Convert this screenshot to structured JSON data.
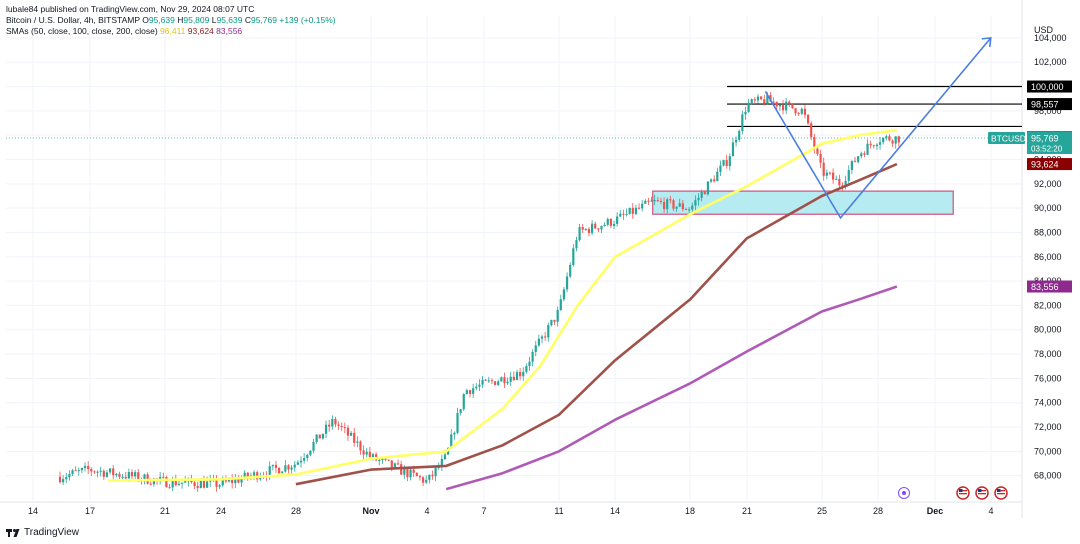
{
  "header": {
    "published": "lubale84 published on TradingView.com, Nov 29, 2024 08:07 UTC",
    "symbol_line": "Bitcoin / U.S. Dollar, 4h, BITSTAMP",
    "o_label": "O",
    "o_value": "95,639",
    "h_label": "H",
    "h_value": "95,809",
    "l_label": "L",
    "l_value": "95,639",
    "c_label": "C",
    "c_value": "95,769",
    "change": "+139 (+0.15%)",
    "sma_label": "SMAs (50, close, 100, close, 200, close)",
    "sma50": "96,411",
    "sma100": "93,624",
    "sma200": "83,556"
  },
  "footer": {
    "brand": "TradingView"
  },
  "colors": {
    "up": "#26a69a",
    "down": "#ef5350",
    "sma50": "#ffff66",
    "sma100": "#a0524a",
    "sma200": "#b05ab8",
    "projection": "#4a7fe0",
    "zone_fill": "#b7ebf2",
    "zone_border": "#d0507a"
  },
  "chart_data": {
    "type": "line",
    "title": "Bitcoin / U.S. Dollar, 4h, BITSTAMP",
    "y_axis_unit": "USD",
    "ylim": [
      66000,
      105800
    ],
    "y_ticks": [
      "104,000",
      "102,000",
      "100,000",
      "98,000",
      "96,000",
      "94,000",
      "92,000",
      "90,000",
      "88,000",
      "86,000",
      "84,000",
      "82,000",
      "80,000",
      "78,000",
      "76,000",
      "74,000",
      "72,000",
      "70,000",
      "68,000"
    ],
    "x_ticks": [
      "14",
      "17",
      "21",
      "24",
      "28",
      "Nov",
      "4",
      "7",
      "11",
      "14",
      "18",
      "21",
      "25",
      "28",
      "Dec",
      "4"
    ],
    "grid": true,
    "close_series": {
      "dates": [
        "Oct 13",
        "Oct 17",
        "Oct 21",
        "Oct 24",
        "Oct 28",
        "Oct 30",
        "Nov 1",
        "Nov 4",
        "Nov 5",
        "Nov 6",
        "Nov 9",
        "Nov 11",
        "Nov 12",
        "Nov 14",
        "Nov 16",
        "Nov 18",
        "Nov 20",
        "Nov 21",
        "Nov 22",
        "Nov 24",
        "Nov 25",
        "Nov 26",
        "Nov 27",
        "Nov 28",
        "Nov 29"
      ],
      "values": [
        67000,
        68500,
        67500,
        67300,
        69000,
        72500,
        69500,
        67500,
        69500,
        75000,
        76500,
        81500,
        88000,
        89000,
        90500,
        90000,
        94000,
        98500,
        98900,
        98000,
        93000,
        92000,
        94500,
        95700,
        95769
      ]
    },
    "series": [
      {
        "name": "SMA 50",
        "color": "#ffff66",
        "dates": [
          "Oct 18",
          "Oct 24",
          "Oct 28",
          "Nov 1",
          "Nov 5",
          "Nov 8",
          "Nov 10",
          "Nov 12",
          "Nov 14",
          "Nov 18",
          "Nov 21",
          "Nov 25",
          "Nov 27",
          "Nov 29"
        ],
        "values": [
          67600,
          67700,
          68100,
          69400,
          70000,
          73500,
          77000,
          82000,
          86000,
          89500,
          91800,
          95300,
          96000,
          96411
        ]
      },
      {
        "name": "SMA 100",
        "color": "#a0524a",
        "dates": [
          "Oct 28",
          "Nov 1",
          "Nov 5",
          "Nov 8",
          "Nov 11",
          "Nov 14",
          "Nov 18",
          "Nov 21",
          "Nov 25",
          "Nov 27",
          "Nov 29"
        ],
        "values": [
          67300,
          68500,
          68800,
          70500,
          73000,
          77500,
          82500,
          87500,
          91000,
          92300,
          93624
        ]
      },
      {
        "name": "SMA 200",
        "color": "#b05ab8",
        "dates": [
          "Nov 5",
          "Nov 8",
          "Nov 11",
          "Nov 14",
          "Nov 18",
          "Nov 21",
          "Nov 25",
          "Nov 27",
          "Nov 29"
        ],
        "values": [
          66900,
          68200,
          70000,
          72600,
          75600,
          78200,
          81500,
          82500,
          83556
        ]
      }
    ],
    "horizontal_levels": [
      {
        "price": 100000,
        "label": "100,000"
      },
      {
        "price": 98557,
        "label": "98,557"
      },
      {
        "price": 96720,
        "label": "96,720"
      }
    ],
    "price_labels": [
      {
        "label": "100,000",
        "style": "black"
      },
      {
        "label": "98,557",
        "style": "black"
      },
      {
        "label": "96,720",
        "style": "black"
      },
      {
        "label": "96,411",
        "style": "yellow"
      },
      {
        "label": "BTCUSD",
        "style": "green"
      },
      {
        "label": "95,769",
        "style": "green",
        "sub": "03:52:20"
      },
      {
        "label": "93,624",
        "style": "darkred"
      },
      {
        "label": "83,556",
        "style": "purple"
      }
    ],
    "support_zone": {
      "from_price": 89500,
      "to_price": 91400,
      "from_date": "Nov 16",
      "to_date": "Dec 2"
    },
    "projection_path": {
      "dates": [
        "Nov 22",
        "Nov 26",
        "Dec 4"
      ],
      "values": [
        99600,
        89200,
        104000
      ]
    }
  }
}
